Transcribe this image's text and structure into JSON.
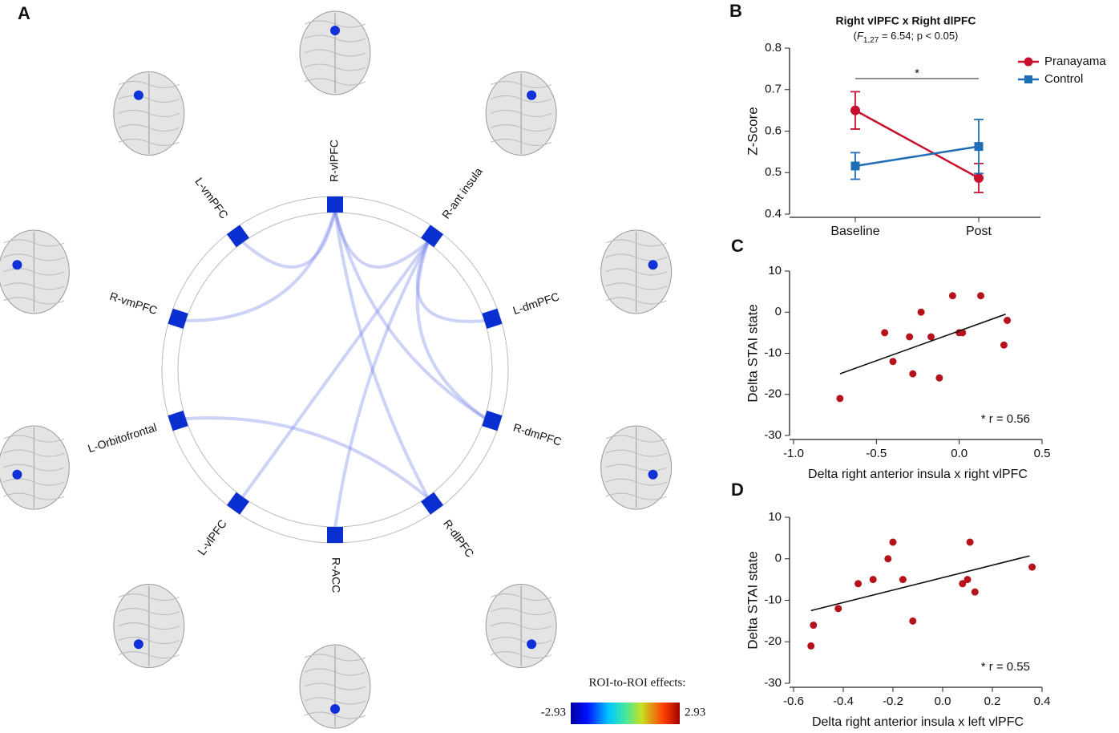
{
  "diagram": {
    "panel": "A",
    "nodes": [
      {
        "label": "R-vlPFC"
      },
      {
        "label": "R-ant insula"
      },
      {
        "label": "L-dmPFC"
      },
      {
        "label": "R-dmPFC"
      },
      {
        "label": "R-dlPFC"
      },
      {
        "label": "R-ACC"
      },
      {
        "label": "L-vlPFC"
      },
      {
        "label": "L-Orbitofrontal"
      },
      {
        "label": "R-vmPFC"
      },
      {
        "label": "L-vmPFC"
      }
    ],
    "edges": [
      [
        0,
        9
      ],
      [
        0,
        8
      ],
      [
        0,
        1
      ],
      [
        0,
        3
      ],
      [
        0,
        4
      ],
      [
        1,
        2
      ],
      [
        1,
        5
      ],
      [
        1,
        6
      ],
      [
        1,
        3
      ],
      [
        7,
        4
      ]
    ],
    "colorbar": {
      "title": "ROI-to-ROI effects:",
      "min": "-2.93",
      "max": "2.93"
    }
  },
  "chart_data": [
    {
      "type": "line",
      "panel": "B",
      "title": "Right vlPFC x Right dlPFC",
      "subtitle": {
        "open": "(",
        "stat": "F",
        "sub": "1,27",
        "rest": " = 6.54; p < 0.05)"
      },
      "ylabel": "Z-Score",
      "annotation": "*",
      "categories": [
        "Baseline",
        "Post"
      ],
      "series": [
        {
          "name": "Pranayama",
          "color": "#c8102e",
          "marker": "circle",
          "values": [
            0.65,
            0.487
          ],
          "errors": [
            0.045,
            0.035
          ]
        },
        {
          "name": "Control",
          "color": "#1f6db5",
          "marker": "square",
          "values": [
            0.516,
            0.563
          ],
          "errors": [
            0.032,
            0.065
          ]
        }
      ],
      "ylim": [
        0.4,
        0.8
      ],
      "yticks": [
        0.4,
        0.5,
        0.6,
        0.7,
        0.8
      ],
      "legend": "upper right"
    },
    {
      "type": "scatter",
      "panel": "C",
      "xlabel": "Delta right anterior insula x right vlPFC",
      "ylabel": "Delta STAI state",
      "annotation": "* r = 0.56",
      "color": "#b5121b",
      "x": [
        -0.72,
        -0.45,
        -0.4,
        -0.3,
        -0.28,
        -0.23,
        -0.17,
        -0.12,
        -0.04,
        0,
        0.02,
        0.13,
        0.27,
        0.29
      ],
      "values": [
        -21,
        -5,
        -12,
        -6,
        -15,
        0,
        -6,
        -16,
        4,
        -5,
        -5,
        4,
        -8,
        -2
      ],
      "fit": {
        "x": [
          -0.72,
          0.28
        ],
        "y": [
          -15,
          -0.5
        ]
      },
      "xlim": [
        -1,
        0.5
      ],
      "xticks": [
        {
          "value": -1,
          "label": "-1.0"
        },
        -0.5,
        {
          "value": 0,
          "label": "0.0"
        },
        0.5
      ],
      "ylim": [
        -30,
        10
      ],
      "yticks": [
        -30,
        -20,
        -10,
        0,
        10
      ]
    },
    {
      "type": "scatter",
      "panel": "D",
      "xlabel": "Delta right anterior insula x left vlPFC",
      "ylabel": "Delta STAI state",
      "annotation": "* r = 0.55",
      "color": "#b5121b",
      "x": [
        -0.53,
        -0.52,
        -0.42,
        -0.34,
        -0.28,
        -0.22,
        -0.2,
        -0.16,
        -0.12,
        0.08,
        0.1,
        0.11,
        0.13,
        0.36
      ],
      "values": [
        -21,
        -16,
        -12,
        -6,
        -5,
        0,
        4,
        -5,
        -15,
        -6,
        -5,
        4,
        -8,
        -2
      ],
      "fit": {
        "x": [
          -0.53,
          0.35
        ],
        "y": [
          -12.5,
          0.7
        ]
      },
      "xlim": [
        -0.6,
        0.4
      ],
      "xticks": [
        -0.6,
        -0.4,
        -0.2,
        {
          "value": 0,
          "label": "0.0"
        },
        0.2,
        0.4
      ],
      "ylim": [
        -30,
        10
      ],
      "yticks": [
        -30,
        -20,
        -10,
        0,
        10
      ]
    }
  ]
}
